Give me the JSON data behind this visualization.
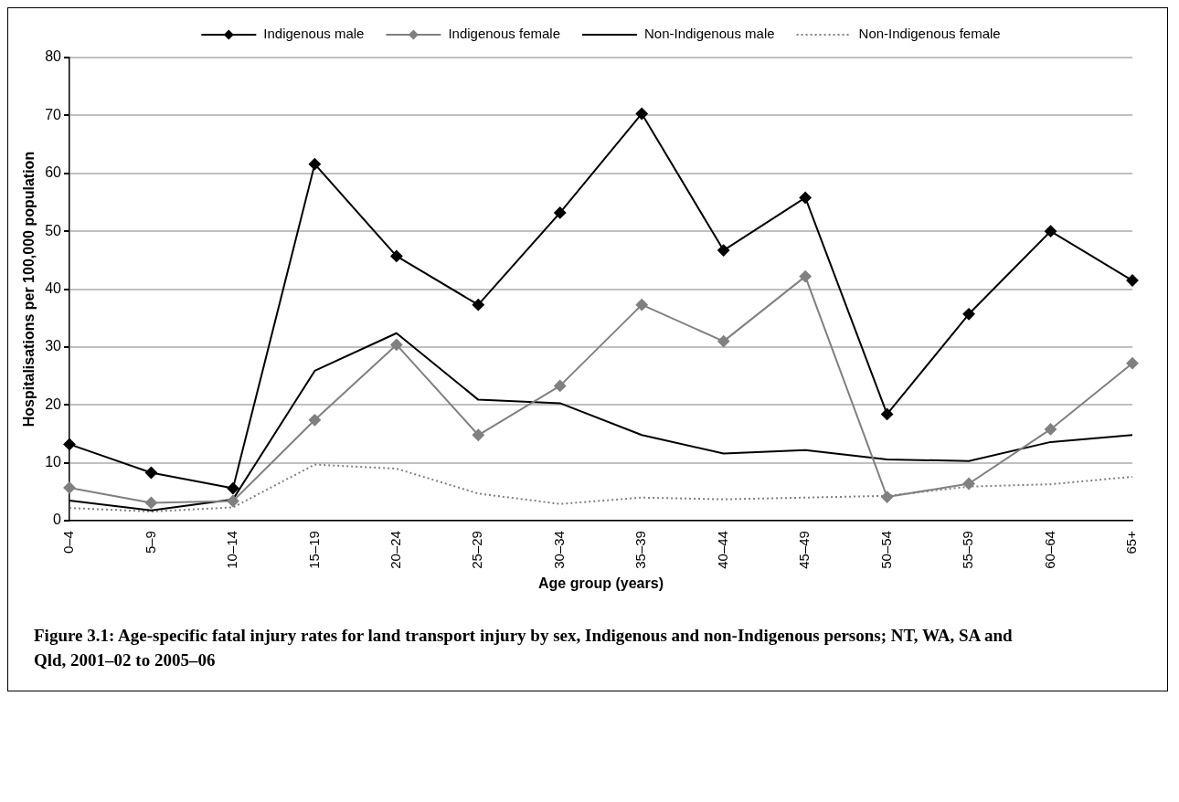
{
  "chart_data": {
    "type": "line",
    "xlabel": "Age group (years)",
    "ylabel": "Hospitalisations per 100,000 population",
    "categories": [
      "0–4",
      "5–9",
      "10–14",
      "15–19",
      "20–24",
      "25–29",
      "30–34",
      "35–39",
      "40–44",
      "45–49",
      "50–54",
      "55–59",
      "60–64",
      "65+"
    ],
    "ylim": [
      0,
      80
    ],
    "yticks": [
      0,
      10,
      20,
      30,
      40,
      50,
      60,
      70,
      80
    ],
    "grid": "y",
    "legend": "top",
    "series": [
      {
        "name": "Indigenous male",
        "color": "#000000",
        "marker": "diamond",
        "line_style": "solid",
        "values": [
          13.2,
          8.3,
          5.6,
          61.6,
          45.7,
          37.3,
          53.2,
          70.3,
          46.7,
          55.8,
          18.4,
          35.7,
          50.0,
          41.5
        ]
      },
      {
        "name": "Indigenous female",
        "color": "#808080",
        "marker": "diamond",
        "line_style": "solid",
        "values": [
          5.7,
          3.1,
          3.4,
          17.4,
          30.4,
          14.8,
          23.3,
          37.3,
          31.0,
          42.2,
          4.1,
          6.4,
          15.8,
          27.2
        ]
      },
      {
        "name": "Non-Indigenous male",
        "color": "#000000",
        "marker": "none",
        "line_style": "solid",
        "values": [
          3.5,
          1.8,
          3.7,
          25.9,
          32.4,
          20.9,
          20.3,
          14.8,
          11.6,
          12.2,
          10.6,
          10.3,
          13.6,
          14.8
        ]
      },
      {
        "name": "Non-Indigenous female",
        "color": "#808080",
        "marker": "none",
        "line_style": "dotted",
        "values": [
          2.2,
          1.6,
          2.3,
          9.7,
          9.0,
          4.7,
          2.9,
          4.0,
          3.7,
          4.0,
          4.3,
          5.9,
          6.3,
          7.6
        ]
      }
    ],
    "annotations": [
      "Figure 3.1: Age-specific fatal injury rates for land transport injury by sex, Indigenous and non-Indigenous persons; NT, WA, SA and Qld, 2001–02 to 2005–06"
    ]
  }
}
